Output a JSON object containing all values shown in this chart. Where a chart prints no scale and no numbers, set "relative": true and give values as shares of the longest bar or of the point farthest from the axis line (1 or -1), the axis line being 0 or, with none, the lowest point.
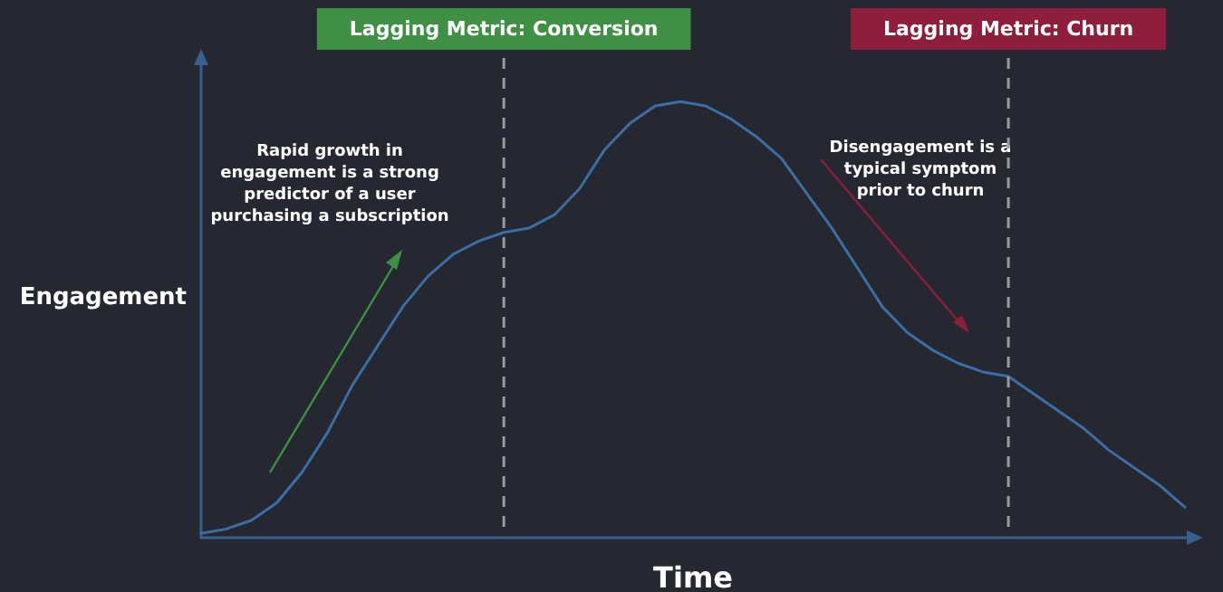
{
  "chart_data": {
    "type": "line",
    "relative": true,
    "xlabel": "Time",
    "ylabel": "Engagement",
    "marker": "none",
    "line_style": "solid",
    "categories": [
      null,
      null,
      null,
      null,
      null,
      null,
      null,
      null,
      null,
      null,
      null,
      null,
      null,
      null,
      null,
      null,
      null,
      null,
      null,
      null,
      null,
      null,
      null,
      null,
      null,
      null,
      null,
      null,
      null,
      null,
      null,
      null,
      null,
      null,
      null,
      null,
      null,
      null,
      null,
      null
    ],
    "series": [
      {
        "color": "#3b6ea5",
        "values": [
          0.01,
          0.02,
          0.04,
          0.08,
          0.15,
          0.24,
          0.35,
          0.44,
          0.53,
          0.6,
          0.65,
          0.68,
          0.7,
          0.71,
          0.74,
          0.8,
          0.89,
          0.95,
          0.99,
          1,
          0.99,
          0.96,
          0.92,
          0.87,
          0.79,
          0.71,
          0.62,
          0.53,
          0.47,
          0.43,
          0.4,
          0.38,
          0.37,
          0.33,
          0.29,
          0.25,
          0.2,
          0.16,
          0.12,
          0.07
        ]
      }
    ],
    "annotations": [
      "Lagging Metric: Conversion",
      "Lagging Metric: Churn",
      "Rapid growth in\nengagement is a strong\npredictor of a user\npurchasing a subscription",
      "Disengagement is a\ntypical symptom\nprior to churn"
    ]
  }
}
